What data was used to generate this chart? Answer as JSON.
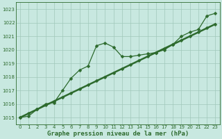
{
  "line_wiggly": [
    1015.0,
    1015.1,
    1015.6,
    1016.0,
    1016.1,
    1017.0,
    1017.9,
    1018.5,
    1018.8,
    1020.3,
    1020.5,
    1020.2,
    1019.5,
    1019.5,
    1019.6,
    1019.7,
    1019.8,
    1020.0,
    1020.4,
    1021.0,
    1021.3,
    1021.5,
    1022.5,
    1022.7
  ],
  "line_straight": [
    1015.0,
    1015.3,
    1015.6,
    1015.9,
    1016.2,
    1016.5,
    1016.8,
    1017.1,
    1017.4,
    1017.7,
    1018.0,
    1018.3,
    1018.6,
    1018.9,
    1019.2,
    1019.5,
    1019.8,
    1020.1,
    1020.4,
    1020.7,
    1021.0,
    1021.3,
    1021.6,
    1021.9
  ],
  "x": [
    0,
    1,
    2,
    3,
    4,
    5,
    6,
    7,
    8,
    9,
    10,
    11,
    12,
    13,
    14,
    15,
    16,
    17,
    18,
    19,
    20,
    21,
    22,
    23
  ],
  "ylim": [
    1014.5,
    1023.5
  ],
  "xlim": [
    -0.5,
    23.5
  ],
  "yticks": [
    1015,
    1016,
    1017,
    1018,
    1019,
    1020,
    1021,
    1022,
    1023
  ],
  "line_color": "#2d6a2d",
  "bg_color": "#c8e8e0",
  "grid_color": "#a0c8ba",
  "xlabel": "Graphe pression niveau de la mer (hPa)",
  "marker": "D",
  "markersize": 2.5,
  "linewidth_wiggly": 0.9,
  "linewidth_straight": 1.8,
  "tick_fontsize": 5.0,
  "xlabel_fontsize": 6.5
}
